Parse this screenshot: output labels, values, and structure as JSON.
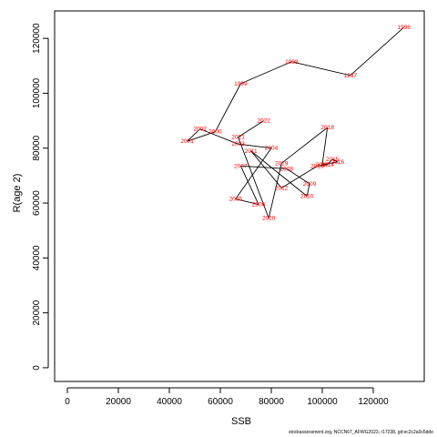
{
  "chart_data": {
    "type": "line",
    "xlabel": "SSB",
    "ylabel": "R(age 2)",
    "xlim": [
      -5000,
      140000
    ],
    "ylim": [
      -5000,
      130000
    ],
    "x_ticks": [
      0,
      20000,
      40000,
      60000,
      80000,
      100000,
      120000
    ],
    "y_ticks": [
      0,
      20000,
      40000,
      60000,
      80000,
      100000,
      120000
    ],
    "series": [
      {
        "points": [
          {
            "year": "1996",
            "x": 132000,
            "y": 124000
          },
          {
            "year": "1997",
            "x": 111000,
            "y": 106500
          },
          {
            "year": "1998",
            "x": 88000,
            "y": 111500
          },
          {
            "year": "1999",
            "x": 68000,
            "y": 103500
          },
          {
            "year": "2000",
            "x": 58000,
            "y": 86000
          },
          {
            "year": "2001",
            "x": 47000,
            "y": 82500
          },
          {
            "year": "2002",
            "x": 52000,
            "y": 87000
          },
          {
            "year": "2003",
            "x": 67000,
            "y": 81500
          },
          {
            "year": "2004",
            "x": 80000,
            "y": 80000
          },
          {
            "year": "2005",
            "x": 66000,
            "y": 61500
          },
          {
            "year": "2006",
            "x": 75000,
            "y": 59500
          },
          {
            "year": "2007",
            "x": 68000,
            "y": 73500
          },
          {
            "year": "2008",
            "x": 86000,
            "y": 72500
          },
          {
            "year": "2009",
            "x": 95000,
            "y": 67000
          },
          {
            "year": "2010",
            "x": 94000,
            "y": 62500
          },
          {
            "year": "2011",
            "x": 72000,
            "y": 79000
          },
          {
            "year": "2012",
            "x": 84000,
            "y": 65500
          },
          {
            "year": "2013",
            "x": 98000,
            "y": 73500
          },
          {
            "year": "2014",
            "x": 102000,
            "y": 74000
          },
          {
            "year": "2015",
            "x": 104000,
            "y": 76000
          },
          {
            "year": "2016",
            "x": 106000,
            "y": 75000
          },
          {
            "year": "2017",
            "x": 100000,
            "y": 74000
          },
          {
            "year": "2018",
            "x": 102000,
            "y": 87500
          },
          {
            "year": "2019",
            "x": 84000,
            "y": 74500
          },
          {
            "year": "2020",
            "x": 79000,
            "y": 54500
          },
          {
            "year": "2021",
            "x": 67000,
            "y": 84000
          },
          {
            "year": "2022",
            "x": 77000,
            "y": 90000
          }
        ]
      }
    ],
    "point_color": "#ff0000",
    "line_color": "#000000",
    "grid": false,
    "legend": "none"
  },
  "footer_text": "stockassessment.org, NCCN67_AFWG2023, r17238, git:ec2c2a0c6dde"
}
